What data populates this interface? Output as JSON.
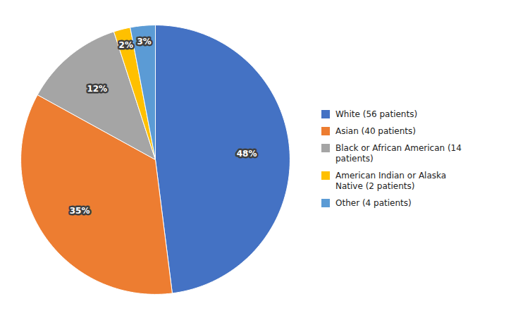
{
  "chart_data": {
    "type": "pie",
    "categories": [
      "White (56 patients)",
      "Asian (40 patients)",
      "Black or African American (14\npatients)",
      "American Indian or Alaska\nNative (2 patients)",
      "Other (4 patients)"
    ],
    "values": [
      48,
      35,
      12,
      2,
      3
    ],
    "value_labels": [
      "48%",
      "35%",
      "12%",
      "2%",
      "3%"
    ],
    "colors": [
      "#4472C4",
      "#ED7D31",
      "#A5A5A5",
      "#FFC000",
      "#5B9BD5"
    ],
    "data_labels": true,
    "legend": "right"
  }
}
